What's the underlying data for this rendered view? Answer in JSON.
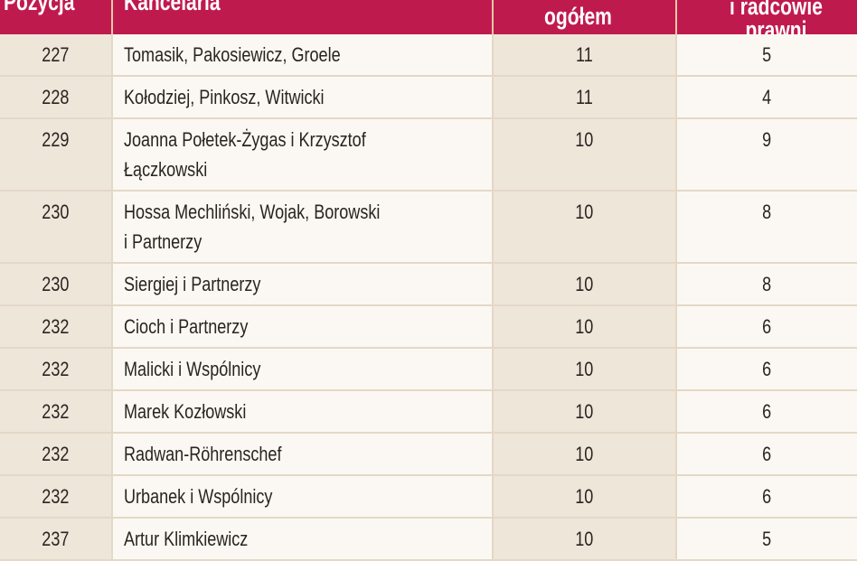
{
  "header": {
    "position": "Pozycja",
    "firm": "Kancelaria",
    "total": "ogółem",
    "lawyers_line1": "i radcowie",
    "lawyers_line2": "prawni"
  },
  "colors": {
    "header_bg": "#bf1a4e",
    "shaded_col": "#efe6da",
    "light_col": "#fbf8f3"
  },
  "rows": [
    {
      "position": "227",
      "firm": [
        "Tomasik, Pakosiewicz, Groele"
      ],
      "total": "11",
      "lawyers": "5"
    },
    {
      "position": "228",
      "firm": [
        "Kołodziej, Pinkosz, Witwicki"
      ],
      "total": "11",
      "lawyers": "4"
    },
    {
      "position": "229",
      "firm": [
        "Joanna Połetek-Żygas i Krzysztof",
        "Łączkowski"
      ],
      "total": "10",
      "lawyers": "9"
    },
    {
      "position": "230",
      "firm": [
        "Hossa Mechliński, Wojak, Borowski",
        "i Partnerzy"
      ],
      "total": "10",
      "lawyers": "8"
    },
    {
      "position": "230",
      "firm": [
        "Siergiej i Partnerzy"
      ],
      "total": "10",
      "lawyers": "8"
    },
    {
      "position": "232",
      "firm": [
        "Cioch i Partnerzy"
      ],
      "total": "10",
      "lawyers": "6"
    },
    {
      "position": "232",
      "firm": [
        "Malicki i Wspólnicy"
      ],
      "total": "10",
      "lawyers": "6"
    },
    {
      "position": "232",
      "firm": [
        "Marek Kozłowski"
      ],
      "total": "10",
      "lawyers": "6"
    },
    {
      "position": "232",
      "firm": [
        "Radwan-Röhrenschef"
      ],
      "total": "10",
      "lawyers": "6"
    },
    {
      "position": "232",
      "firm": [
        "Urbanek i Wspólnicy"
      ],
      "total": "10",
      "lawyers": "6"
    },
    {
      "position": "237",
      "firm": [
        "Artur Klimkiewicz"
      ],
      "total": "10",
      "lawyers": "5"
    }
  ]
}
